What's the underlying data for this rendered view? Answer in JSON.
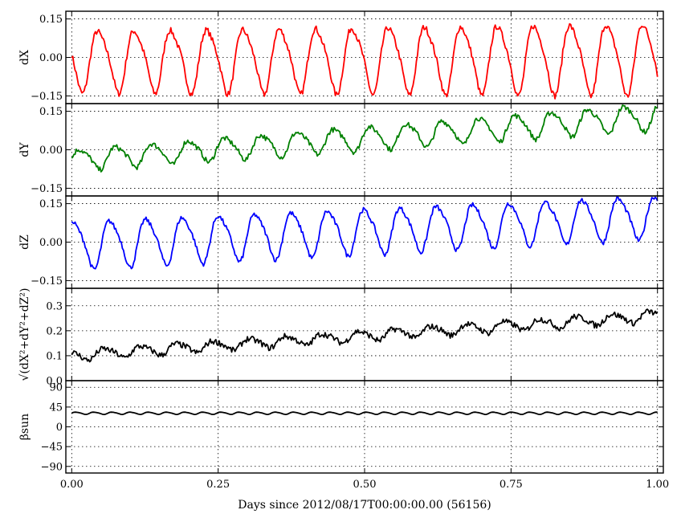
{
  "chart_data": {
    "type": "line",
    "xlabel": "Days since 2012/08/17T00:00:00.00 (56156)",
    "xlim": [
      -0.01,
      1.01
    ],
    "xticks": [
      0.0,
      0.25,
      0.5,
      0.75,
      1.0
    ],
    "xtick_labels": [
      "0.00",
      "0.25",
      "0.50",
      "0.75",
      "1.00"
    ],
    "grid": true,
    "panels": [
      {
        "ylabel": "dX",
        "ylim": [
          -0.18,
          0.18
        ],
        "yticks": [
          0.15,
          0.0,
          -0.15
        ],
        "ytick_labels": [
          "0.15",
          "0.00",
          "−0.15"
        ],
        "series": [
          {
            "color": "#ff0000",
            "kind": "oscillation",
            "offset": [
              -0.01,
              0.0
            ],
            "amplitude": [
              0.115,
              0.135
            ],
            "period": 0.062,
            "phase": 0.03,
            "noise": 0.012
          }
        ]
      },
      {
        "ylabel": "dY",
        "ylim": [
          -0.18,
          0.18
        ],
        "yticks": [
          0.15,
          0.0,
          -0.15
        ],
        "ytick_labels": [
          "0.15",
          "0.00",
          "−0.15"
        ],
        "series": [
          {
            "color": "#008000",
            "kind": "oscillation",
            "offset": [
              -0.04,
              0.13
            ],
            "amplitude": [
              0.04,
              0.05
            ],
            "period": 0.062,
            "phase": 0.0,
            "noise": 0.01
          }
        ]
      },
      {
        "ylabel": "dZ",
        "ylim": [
          -0.18,
          0.18
        ],
        "yticks": [
          0.15,
          0.0,
          -0.15
        ],
        "ytick_labels": [
          "0.15",
          "0.00",
          "−0.15"
        ],
        "series": [
          {
            "color": "#0000ff",
            "kind": "oscillation",
            "offset": [
              -0.01,
              0.1
            ],
            "amplitude": [
              0.09,
              0.08
            ],
            "period": 0.062,
            "phase": 0.01,
            "noise": 0.009
          }
        ]
      },
      {
        "ylabel": "√(dX²+dY²+dZ²)",
        "ylim": [
          0.0,
          0.37
        ],
        "yticks": [
          0.3,
          0.2,
          0.1,
          0.0
        ],
        "ytick_labels": [
          "0.3",
          "0.2",
          "0.1",
          "0.0"
        ],
        "series": [
          {
            "color": "#000000",
            "kind": "oscillation",
            "offset": [
              0.1,
              0.26
            ],
            "amplitude": [
              0.02,
              0.02
            ],
            "period": 0.062,
            "phase": 0.02,
            "noise": 0.012
          }
        ]
      },
      {
        "ylabel": "βsun",
        "ylim": [
          -105,
          105
        ],
        "yticks": [
          90,
          45,
          0,
          -45,
          -90
        ],
        "ytick_labels": [
          "90",
          "45",
          "0",
          "−45",
          "−90"
        ],
        "series": [
          {
            "color": "#000000",
            "kind": "oscillation",
            "offset": [
              31,
              31
            ],
            "amplitude": [
              2.5,
              2.5
            ],
            "period": 0.031,
            "phase": 0.0,
            "noise": 0
          }
        ]
      }
    ]
  }
}
